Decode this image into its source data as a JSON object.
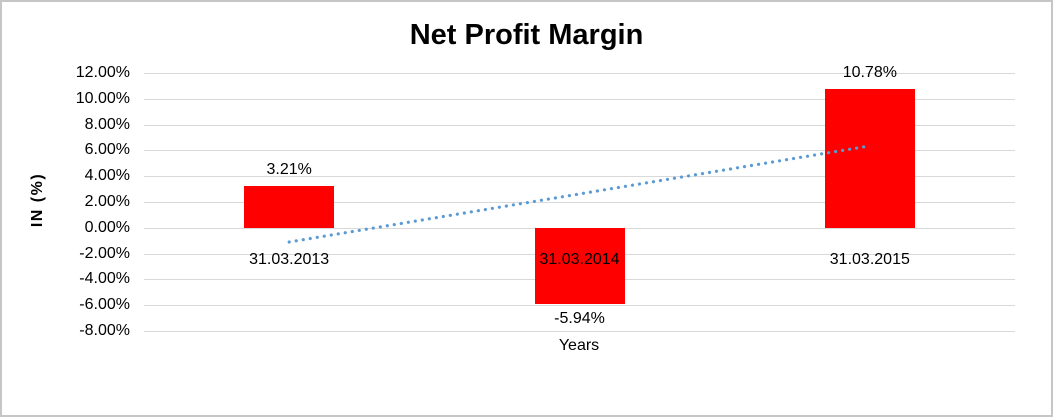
{
  "chart_data": {
    "type": "bar",
    "title": "Net Profit Margin",
    "xlabel": "Years",
    "ylabel": "IN (%)",
    "categories": [
      "31.03.2013",
      "31.03.2014",
      "31.03.2015"
    ],
    "values": [
      3.21,
      -5.94,
      10.78
    ],
    "data_labels": [
      "3.21%",
      "-5.94%",
      "10.78%"
    ],
    "ylim": [
      -8,
      12
    ],
    "yticks": [
      12,
      10,
      8,
      6,
      4,
      2,
      0,
      -2,
      -4,
      -6,
      -8
    ],
    "ytick_labels": [
      "12.00%",
      "10.00%",
      "8.00%",
      "6.00%",
      "4.00%",
      "2.00%",
      "0.00%",
      "-2.00%",
      "-4.00%",
      "-6.00%",
      "-8.00%"
    ],
    "grid": true,
    "legend": "none",
    "colors": {
      "bar": "#FF0000",
      "gridline": "#D9D9D9",
      "text": "#000000",
      "trendline": "#5B9BD5",
      "frame_border": "#C6C6C6"
    },
    "trendline": {
      "type": "linear",
      "style": "dotted",
      "color": "#5B9BD5",
      "start_value": -1.1,
      "end_value": 6.35
    }
  }
}
